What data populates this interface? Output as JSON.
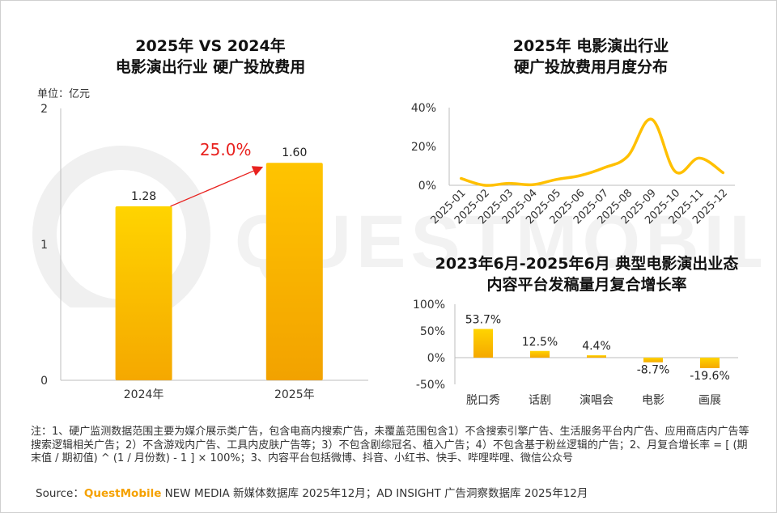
{
  "watermark": "QUESTMOBILE",
  "chart_data": [
    {
      "type": "bar",
      "title_lines": [
        "2025年 VS 2024年",
        "电影演出行业 硬广投放费用"
      ],
      "unit": "单位：亿元",
      "categories": [
        "2024年",
        "2025年"
      ],
      "values": [
        1.28,
        1.6
      ],
      "value_labels": [
        "1.28",
        "1.60"
      ],
      "ylim": [
        0,
        2
      ],
      "yticks": [
        "0",
        "1",
        "2"
      ],
      "annotation": "25.0%",
      "colors": {
        "bar": "#ffc000",
        "arrow": "#e8211e"
      }
    },
    {
      "type": "line",
      "title_lines": [
        "2025年 电影演出行业",
        "硬广投放费用月度分布"
      ],
      "categories": [
        "2025-01",
        "2025-02",
        "2025-03",
        "2025-04",
        "2025-05",
        "2025-06",
        "2025-07",
        "2025-08",
        "2025-09",
        "2025-10",
        "2025-11",
        "2025-12"
      ],
      "values": [
        3.5,
        0,
        1,
        0.3,
        3,
        5,
        9,
        15,
        34,
        7,
        14,
        6.5
      ],
      "ylim": [
        0,
        40
      ],
      "yticks": [
        "0%",
        "20%",
        "40%"
      ],
      "colors": {
        "line": "#ffc000"
      }
    },
    {
      "type": "bar",
      "title_lines": [
        "2023年6月-2025年6月 典型电影演出业态",
        "内容平台发稿量月复合增长率"
      ],
      "categories": [
        "脱口秀",
        "话剧",
        "演唱会",
        "电影",
        "画展"
      ],
      "values": [
        53.7,
        12.5,
        4.4,
        -8.7,
        -19.6
      ],
      "value_labels": [
        "53.7%",
        "12.5%",
        "4.4%",
        "-8.7%",
        "-19.6%"
      ],
      "ylim": [
        -50,
        100
      ],
      "yticks": [
        "-50%",
        "0%",
        "50%",
        "100%"
      ],
      "colors": {
        "bar": "#ffc000"
      }
    }
  ],
  "footnote": "注：1、硬广监测数据范围主要为媒介展示类广告，包含电商内搜索广告，未覆盖范围包含1）不含搜索引擎广告、生活服务平台内广告、应用商店内广告等搜索逻辑相关广告；2）不含游戏内广告、工具内皮肤广告等；3）不包含剧综冠名、植入广告；4）不包含基于粉丝逻辑的广告；2、月复合增长率 = [ (期末值 / 期初值) ^ (1 / 月份数) - 1 ] × 100%；3、内容平台包括微博、抖音、小红书、快手、哔哩哔哩、微信公众号",
  "source": {
    "label": "Source：",
    "brand": "QuestMobile",
    "text": " NEW MEDIA 新媒体数据库 2025年12月；AD INSIGHT 广告洞察数据库 2025年12月"
  }
}
